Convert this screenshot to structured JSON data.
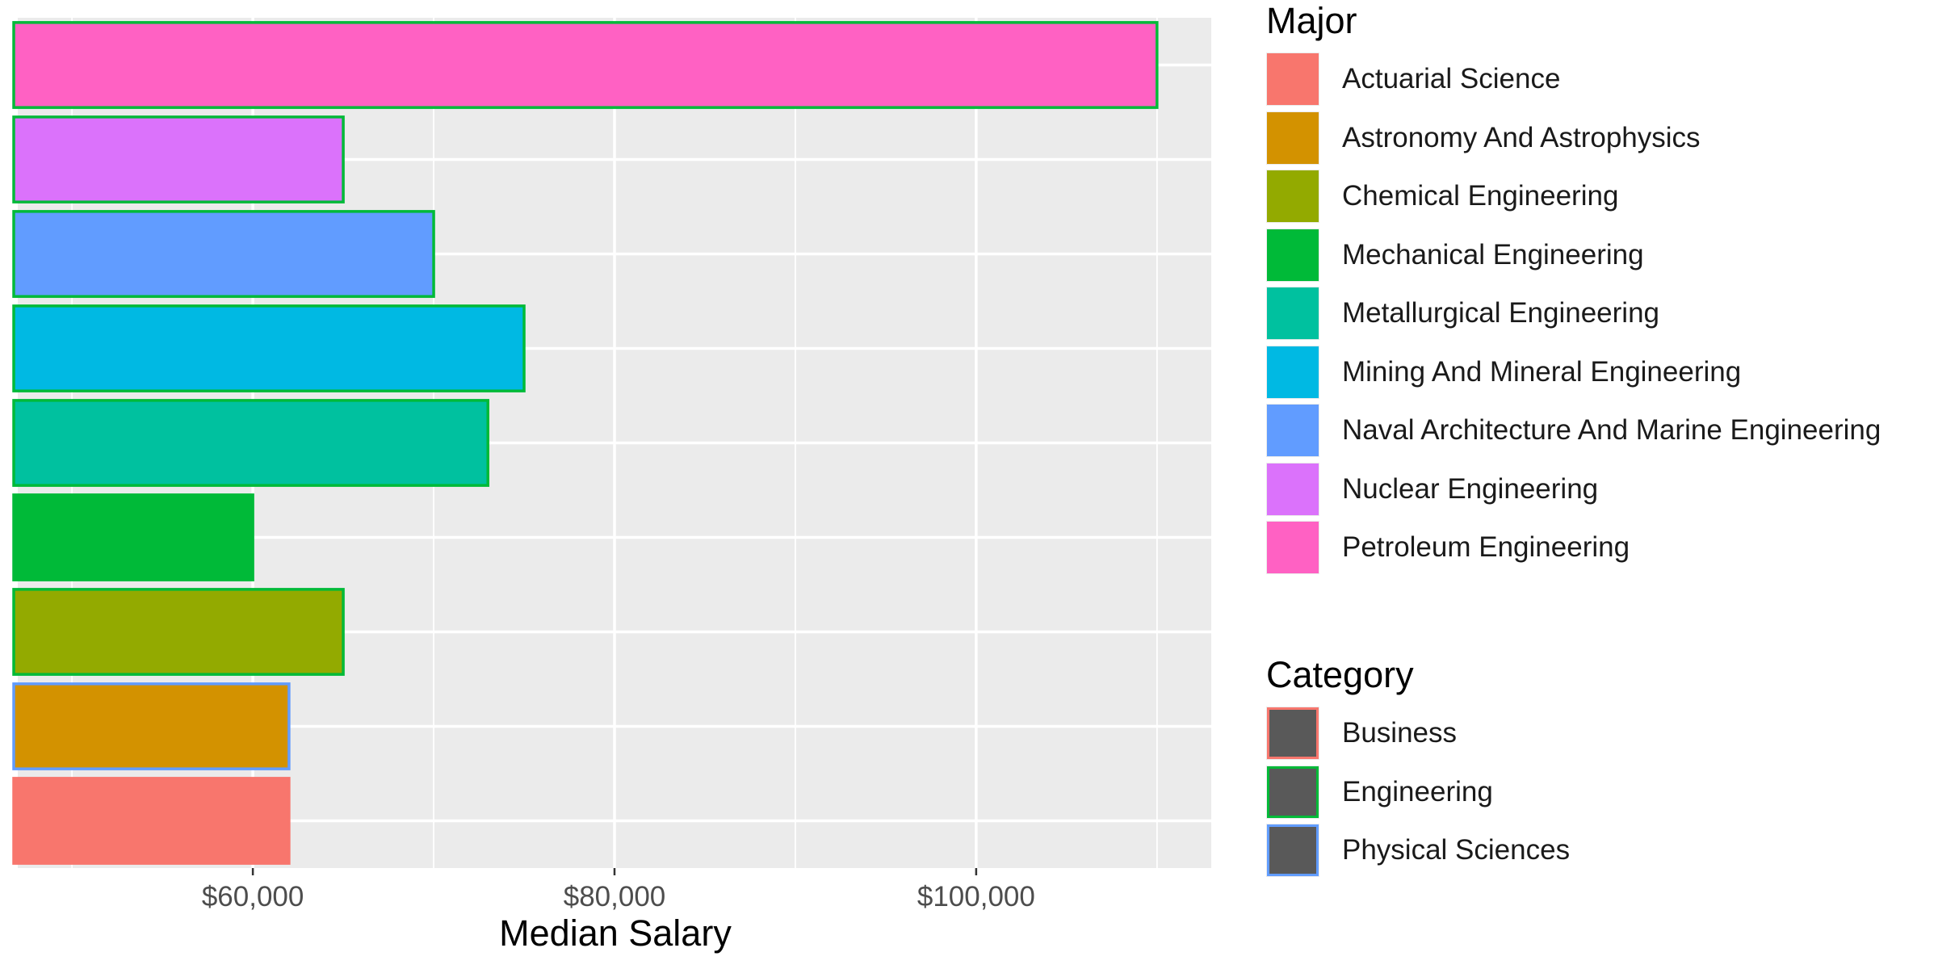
{
  "chart_data": {
    "type": "bar",
    "orientation": "horizontal",
    "categories": [
      "Actuarial Science",
      "Astronomy And Astrophysics",
      "Chemical Engineering",
      "Mechanical Engineering",
      "Metallurgical Engineering",
      "Mining And Mineral Engineering",
      "Naval Architecture And Marine Engineering",
      "Nuclear Engineering",
      "Petroleum Engineering"
    ],
    "values": [
      62000,
      62000,
      65000,
      60000,
      73000,
      75000,
      70000,
      65000,
      110000
    ],
    "bar_category": [
      "Business",
      "Physical Sciences",
      "Engineering",
      "Engineering",
      "Engineering",
      "Engineering",
      "Engineering",
      "Engineering",
      "Engineering"
    ],
    "xlabel": "Median Salary",
    "ylabel": "",
    "xlim": [
      47000,
      113000
    ],
    "x_ticks": [
      60000,
      80000,
      100000
    ],
    "x_tick_labels": [
      "$60,000",
      "$80,000",
      "$100,000"
    ],
    "x_minor_ticks": [
      50000,
      70000,
      90000,
      110000
    ],
    "grid": true,
    "panel_background": "#ebebeb",
    "fill_legend": {
      "title": "Major",
      "items": [
        {
          "label": "Actuarial Science",
          "color": "#F8766D"
        },
        {
          "label": "Astronomy And Astrophysics",
          "color": "#D39200"
        },
        {
          "label": "Chemical Engineering",
          "color": "#93AA00"
        },
        {
          "label": "Mechanical Engineering",
          "color": "#00BA38"
        },
        {
          "label": "Metallurgical Engineering",
          "color": "#00C19F"
        },
        {
          "label": "Mining And Mineral Engineering",
          "color": "#00B9E3"
        },
        {
          "label": "Naval Architecture And Marine Engineering",
          "color": "#619CFF"
        },
        {
          "label": "Nuclear Engineering",
          "color": "#DB72FB"
        },
        {
          "label": "Petroleum Engineering",
          "color": "#FF61C3"
        }
      ]
    },
    "outline_legend": {
      "title": "Category",
      "items": [
        {
          "label": "Business",
          "color": "#F8766D"
        },
        {
          "label": "Engineering",
          "color": "#00BA38"
        },
        {
          "label": "Physical Sciences",
          "color": "#619CFF"
        }
      ]
    },
    "legend_position": "right"
  }
}
